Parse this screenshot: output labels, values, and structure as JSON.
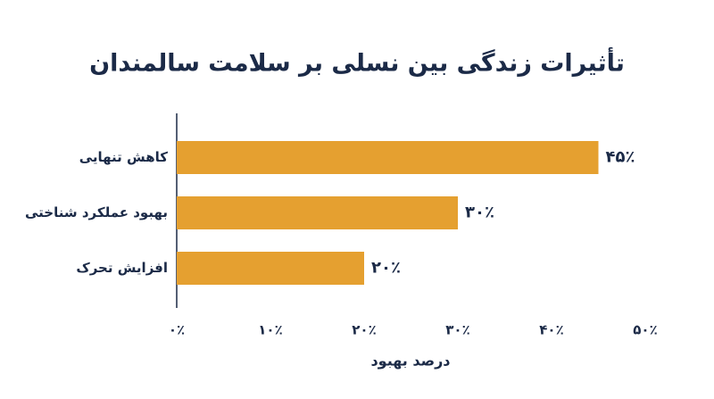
{
  "chart_data": {
    "type": "barh",
    "title": "تأثیرات زندگی بین نسلی بر سلامت سالمندان",
    "categories": [
      "کاهش تنهایی",
      "بهبود عملکرد شناختی",
      "افزایش تحرک"
    ],
    "values": [
      45,
      30,
      20
    ],
    "value_labels": [
      "۴۵٪",
      "۳۰٪",
      "۲۰٪"
    ],
    "color": "#e5a030",
    "xlabel": "درصد بهبود",
    "xlim": [
      0,
      50
    ],
    "xticks": [
      {
        "value": 0,
        "label": "۰٪"
      },
      {
        "value": 10,
        "label": "۱۰٪"
      },
      {
        "value": 20,
        "label": "۲۰٪"
      },
      {
        "value": 30,
        "label": "۳۰٪"
      },
      {
        "value": 40,
        "label": "۴۰٪"
      },
      {
        "value": 50,
        "label": "۵۰٪"
      }
    ],
    "grid": false
  }
}
